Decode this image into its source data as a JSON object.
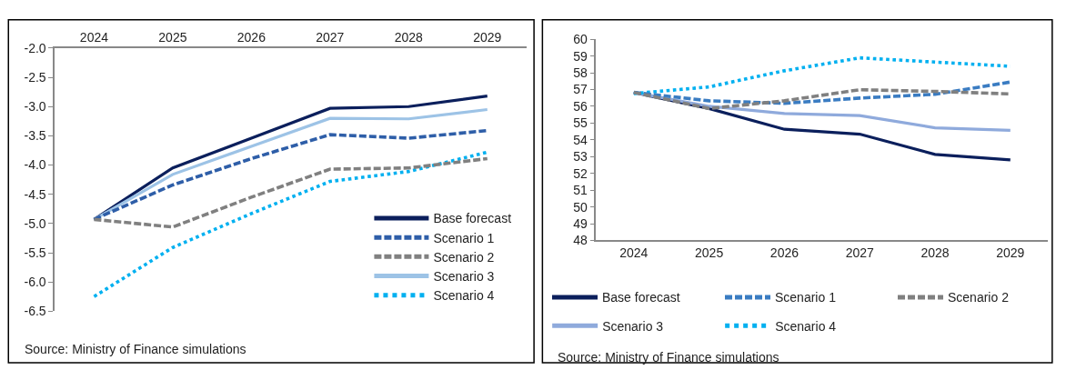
{
  "chart_data": [
    {
      "type": "line",
      "categories": [
        "2024",
        "2025",
        "2026",
        "2027",
        "2028",
        "2029"
      ],
      "ylim": [
        -6.5,
        -2.0
      ],
      "yticks": [
        {
          "value": -6.5,
          "label": "-6.5"
        },
        {
          "value": -6.0,
          "label": "-6.0"
        },
        {
          "value": -5.5,
          "label": "-5.5"
        },
        {
          "value": -5.0,
          "label": "-5.0"
        },
        {
          "value": -4.5,
          "label": "-4.5"
        },
        {
          "value": -4.0,
          "label": "-4.0"
        },
        {
          "value": -3.5,
          "label": "-3.5"
        },
        {
          "value": -3.0,
          "label": "-3.0"
        },
        {
          "value": -2.5,
          "label": "-2.5"
        },
        {
          "value": -2.0,
          "label": "-2.0"
        }
      ],
      "grid": false,
      "legend": "bottom right",
      "marker": "none",
      "series": [
        {
          "name": "Base forecast",
          "color": "#0b1f5c",
          "line_style": "solid",
          "values": [
            -4.93,
            -4.05,
            -3.54,
            -3.03,
            -3.0,
            -2.82
          ]
        },
        {
          "name": "Scenario 1",
          "color": "#2e5ea8",
          "line_style": "dashed",
          "values": [
            -4.93,
            -4.34,
            -3.89,
            -3.48,
            -3.54,
            -3.41
          ]
        },
        {
          "name": "Scenario 2",
          "color": "#808080",
          "line_style": "dashed",
          "values": [
            -4.93,
            -5.06,
            -4.55,
            -4.07,
            -4.05,
            -3.89
          ]
        },
        {
          "name": "Scenario 3",
          "color": "#9dc3e6",
          "line_style": "solid",
          "values": [
            -4.93,
            -4.16,
            -3.68,
            -3.2,
            -3.21,
            -3.05
          ]
        },
        {
          "name": "Scenario 4",
          "color": "#00b0f0",
          "line_style": "dotted",
          "values": [
            -6.25,
            -5.41,
            -4.83,
            -4.28,
            -4.11,
            -3.78
          ]
        }
      ],
      "annotations": [
        "Source: Ministry of Finance simulations"
      ]
    },
    {
      "type": "line",
      "categories": [
        "2024",
        "2025",
        "2026",
        "2027",
        "2028",
        "2029"
      ],
      "ylim": [
        48,
        60
      ],
      "yticks": [
        48,
        49,
        50,
        51,
        52,
        53,
        54,
        55,
        56,
        57,
        58,
        59,
        60
      ],
      "grid": false,
      "legend": "bottom",
      "marker": "none",
      "series": [
        {
          "name": "Base forecast",
          "color": "#0b1f5c",
          "line_style": "solid",
          "values": [
            56.83,
            55.87,
            54.63,
            54.34,
            53.13,
            52.8
          ]
        },
        {
          "name": "Scenario 1",
          "color": "#3a7cc2",
          "line_style": "dashed",
          "values": [
            56.83,
            56.33,
            56.18,
            56.49,
            56.72,
            57.45
          ]
        },
        {
          "name": "Scenario 2",
          "color": "#808080",
          "line_style": "dashed",
          "values": [
            56.83,
            55.87,
            56.33,
            56.99,
            56.89,
            56.74
          ]
        },
        {
          "name": "Scenario 3",
          "color": "#8faadc",
          "line_style": "solid",
          "values": [
            56.83,
            56.0,
            55.57,
            55.45,
            54.72,
            54.57
          ]
        },
        {
          "name": "Scenario 4",
          "color": "#00b0f0",
          "line_style": "dotted",
          "values": [
            56.76,
            57.16,
            58.12,
            58.89,
            58.64,
            58.39
          ]
        }
      ],
      "annotations": [
        "Source: Ministry of Finance simulations"
      ]
    }
  ]
}
